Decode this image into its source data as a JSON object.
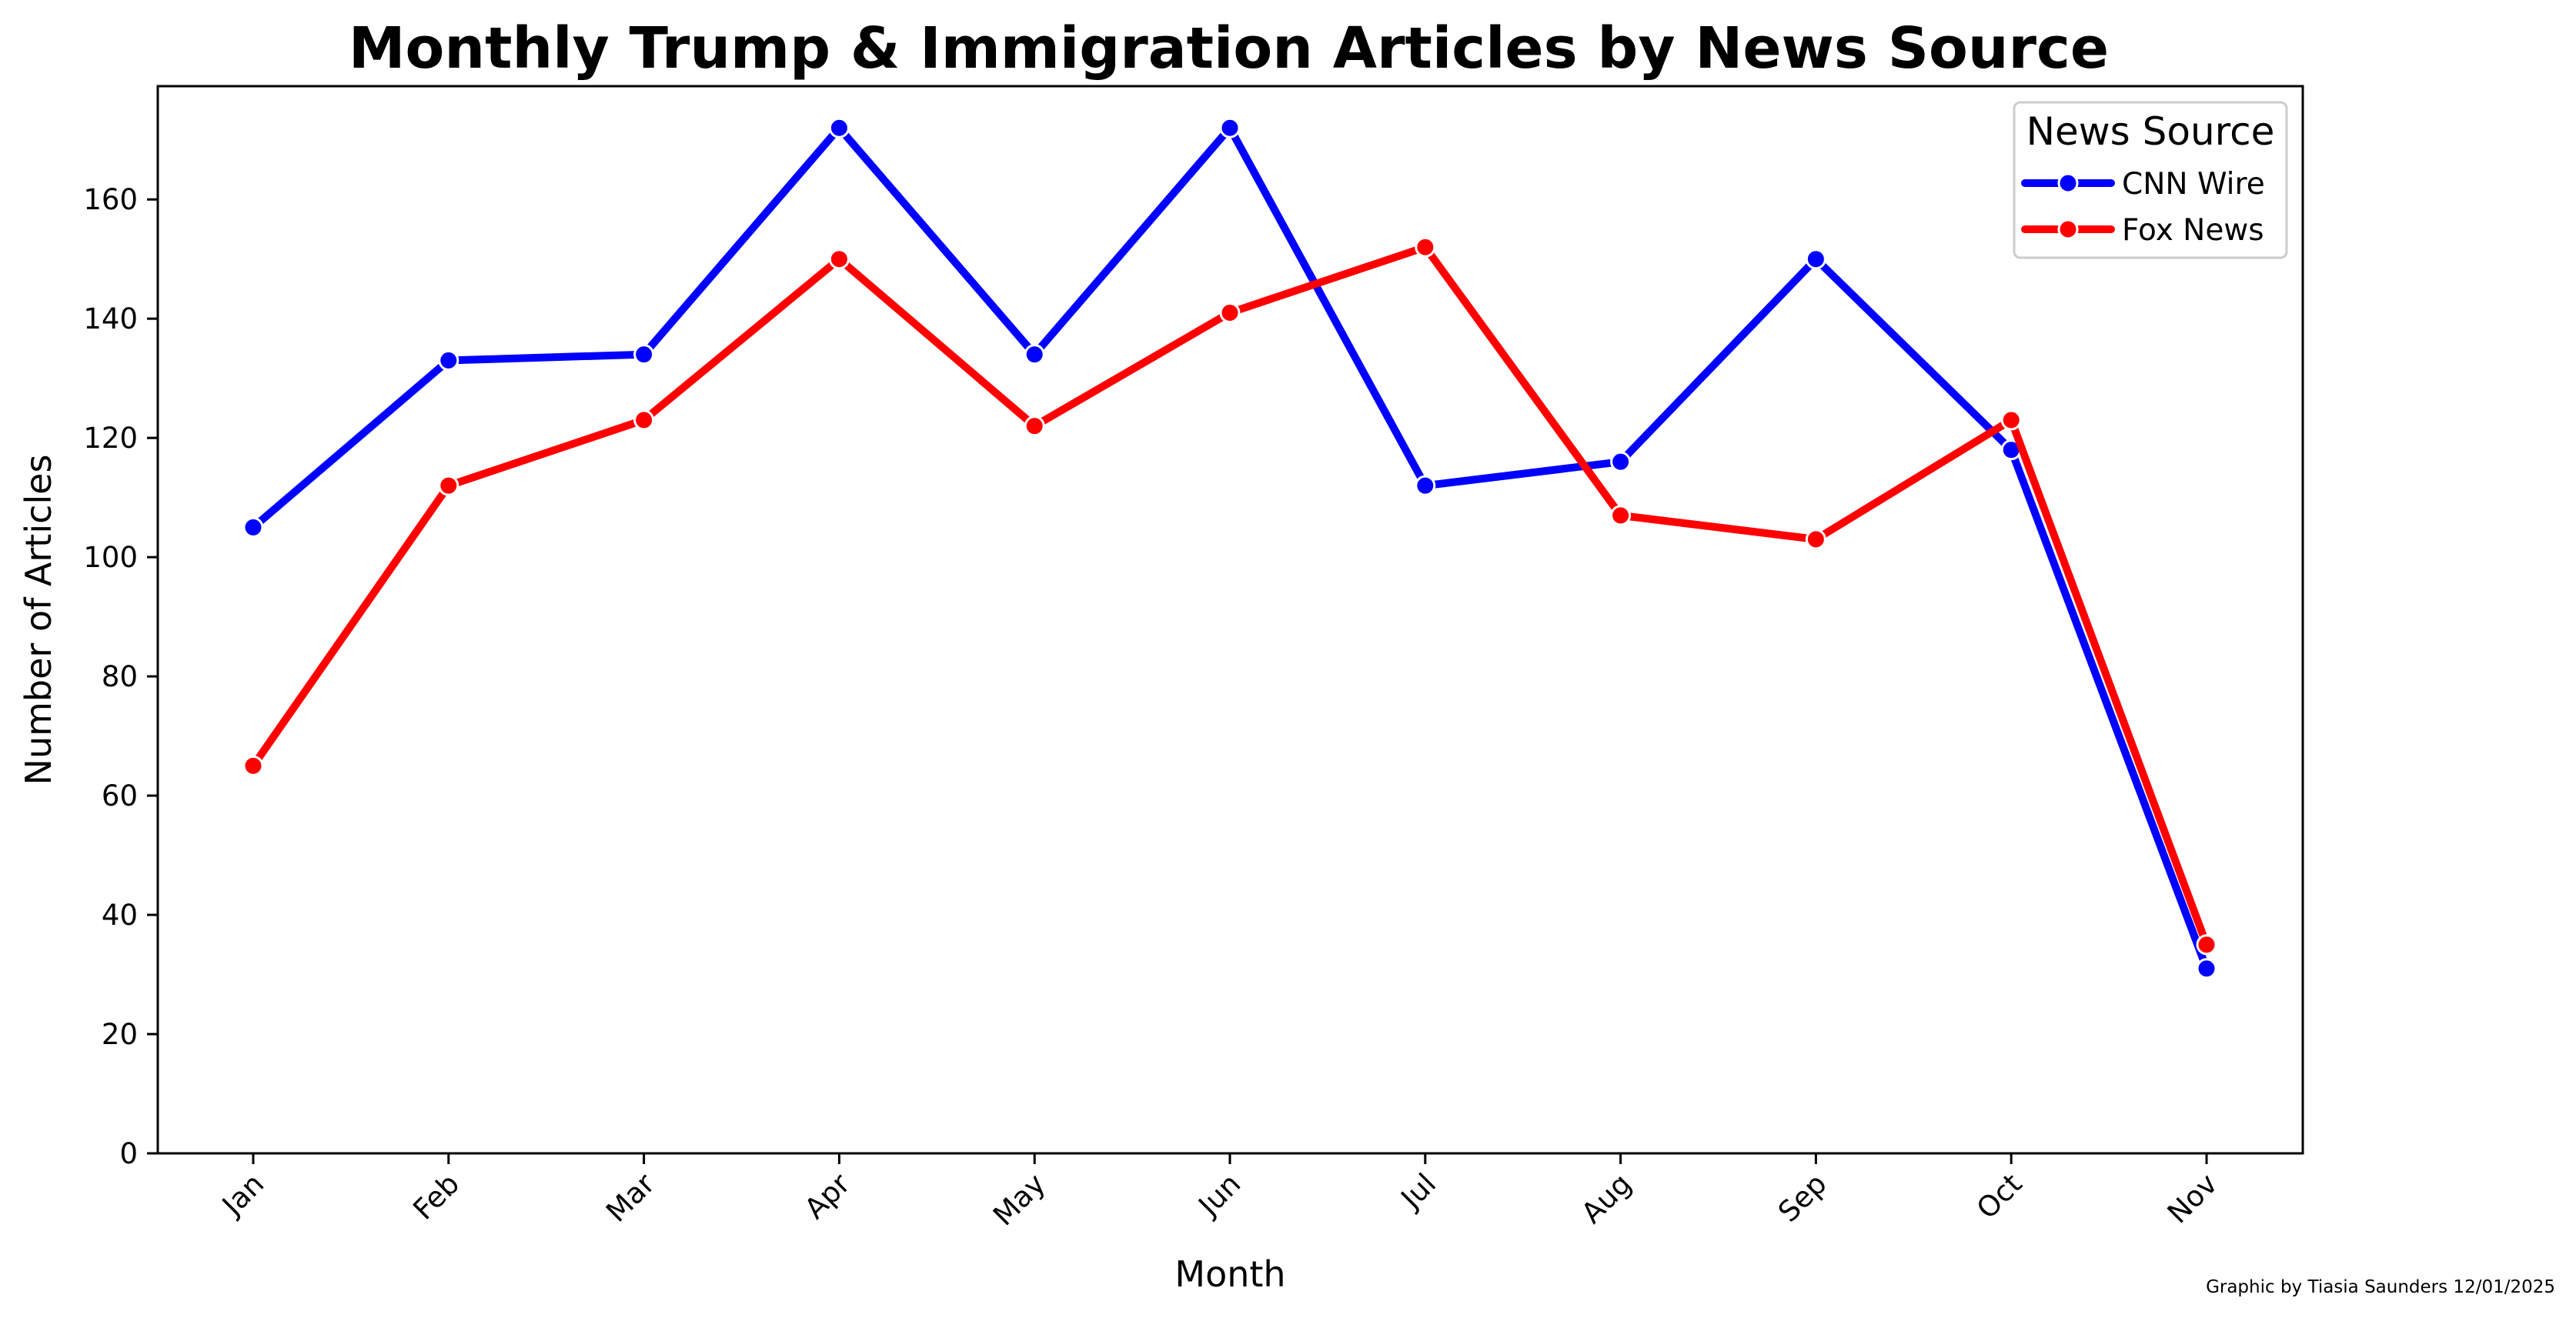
{
  "chart_data": {
    "type": "line",
    "title": "Monthly Trump & Immigration Articles by News Source",
    "xlabel": "Month",
    "ylabel": "Number of Articles",
    "categories": [
      "Jan",
      "Feb",
      "Mar",
      "Apr",
      "May",
      "Jun",
      "Jul",
      "Aug",
      "Sep",
      "Oct",
      "Nov"
    ],
    "yticks": [
      0,
      20,
      40,
      60,
      80,
      100,
      120,
      140,
      160
    ],
    "ylim": [
      0,
      179
    ],
    "grid": false,
    "legend": {
      "title": "News Source",
      "placement": "top-right"
    },
    "series": [
      {
        "name": "CNN Wire",
        "color": "#0000ff",
        "values": [
          105,
          133,
          134,
          172,
          134,
          172,
          112,
          116,
          150,
          118,
          31
        ]
      },
      {
        "name": "Fox News",
        "color": "#ff0000",
        "values": [
          65,
          112,
          123,
          150,
          122,
          141,
          152,
          107,
          103,
          123,
          35
        ]
      }
    ],
    "credit": "Graphic by Tiasia Saunders 12/01/2025"
  }
}
